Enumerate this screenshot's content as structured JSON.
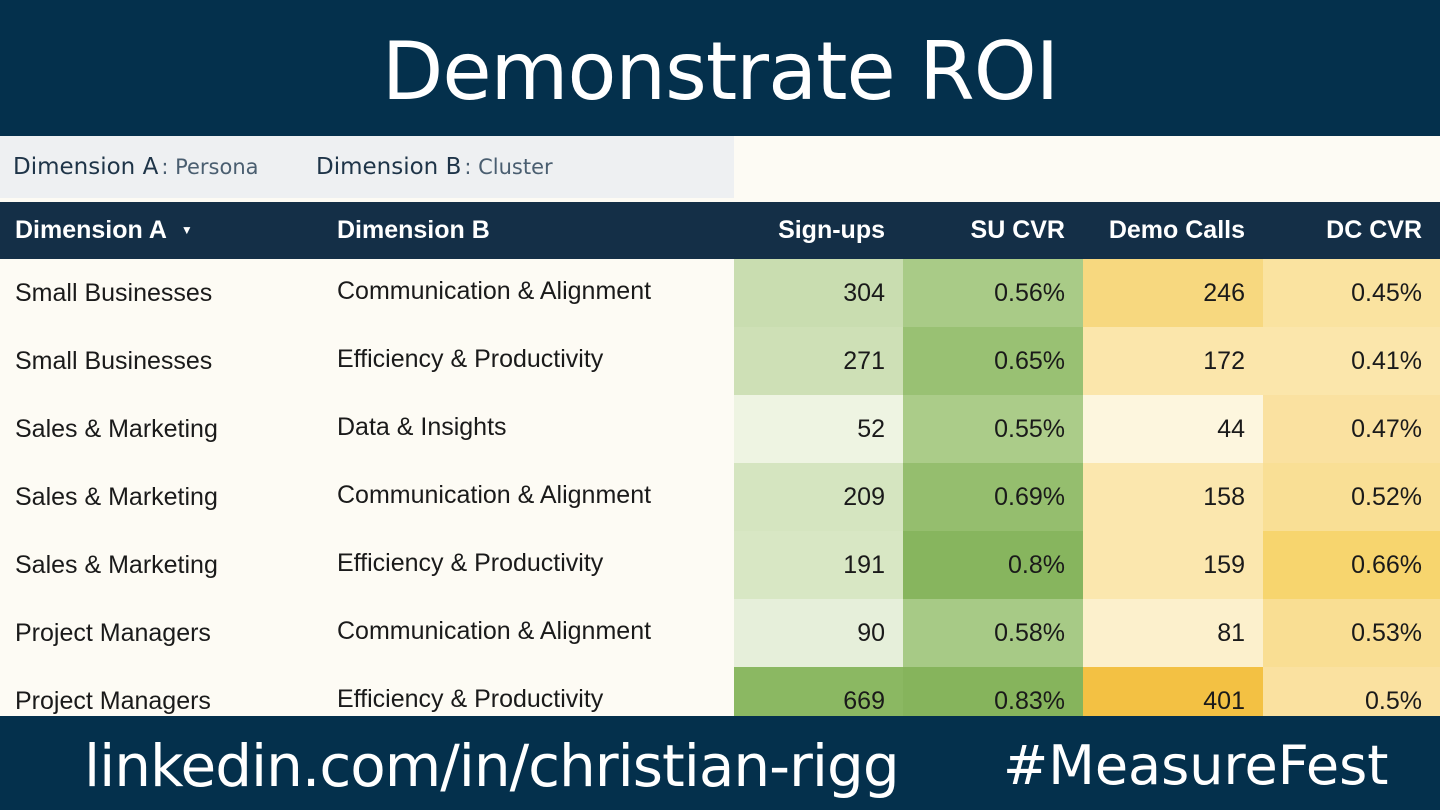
{
  "slide": {
    "title": "Demonstrate ROI"
  },
  "filters": {
    "a": {
      "label": "Dimension A",
      "value": ": Persona"
    },
    "b": {
      "label": "Dimension B",
      "value": ": Cluster"
    }
  },
  "table": {
    "columns": [
      "Dimension A",
      "Dimension B",
      "Sign-ups",
      "SU CVR",
      "Demo Calls",
      "DC CVR"
    ],
    "sort_icon": "sort-desc-icon",
    "rows": [
      {
        "a": "Small Businesses",
        "b": "Communication & Alignment",
        "signups": "304",
        "su_cvr": "0.56%",
        "demo_calls": "246",
        "dc_cvr": "0.45%",
        "colors": {
          "signups": "#c9ddb0",
          "su_cvr": "#a9cb87",
          "demo_calls": "#f7d87f",
          "dc_cvr": "#fae3a0"
        }
      },
      {
        "a": "Small Businesses",
        "b": "Efficiency & Productivity",
        "signups": "271",
        "su_cvr": "0.65%",
        "demo_calls": "172",
        "dc_cvr": "0.41%",
        "colors": {
          "signups": "#cee0b6",
          "su_cvr": "#99c173",
          "demo_calls": "#fbe6ab",
          "dc_cvr": "#fbe6ab"
        }
      },
      {
        "a": "Sales & Marketing",
        "b": "Data & Insights",
        "signups": "52",
        "su_cvr": "0.55%",
        "demo_calls": "44",
        "dc_cvr": "0.47%",
        "colors": {
          "signups": "#eef4e2",
          "su_cvr": "#abcc89",
          "demo_calls": "#fdf6de",
          "dc_cvr": "#fae1a0"
        }
      },
      {
        "a": "Sales & Marketing",
        "b": "Communication & Alignment",
        "signups": "209",
        "su_cvr": "0.69%",
        "demo_calls": "158",
        "dc_cvr": "0.52%",
        "colors": {
          "signups": "#d5e5c0",
          "su_cvr": "#95be6e",
          "demo_calls": "#fbe7ae",
          "dc_cvr": "#f9df95"
        }
      },
      {
        "a": "Sales & Marketing",
        "b": "Efficiency & Productivity",
        "signups": "191",
        "su_cvr": "0.8%",
        "demo_calls": "159",
        "dc_cvr": "0.66%",
        "colors": {
          "signups": "#d8e7c4",
          "su_cvr": "#87b55e",
          "demo_calls": "#fbe7ae",
          "dc_cvr": "#f7d56e"
        }
      },
      {
        "a": "Project Managers",
        "b": "Communication & Alignment",
        "signups": "90",
        "su_cvr": "0.58%",
        "demo_calls": "81",
        "dc_cvr": "0.53%",
        "colors": {
          "signups": "#e6efda",
          "su_cvr": "#a7ca86",
          "demo_calls": "#fcf0cc",
          "dc_cvr": "#f9de93"
        }
      },
      {
        "a": "Project Managers",
        "b": "Efficiency & Productivity",
        "signups": "669",
        "su_cvr": "0.83%",
        "demo_calls": "401",
        "dc_cvr": "0.5%",
        "colors": {
          "signups": "#8bb862",
          "su_cvr": "#86b45c",
          "demo_calls": "#f3c143",
          "dc_cvr": "#fae1a0"
        }
      }
    ]
  },
  "footer": {
    "link": "linkedin.com/in/christian-rigg",
    "hashtag": "#MeasureFest"
  }
}
